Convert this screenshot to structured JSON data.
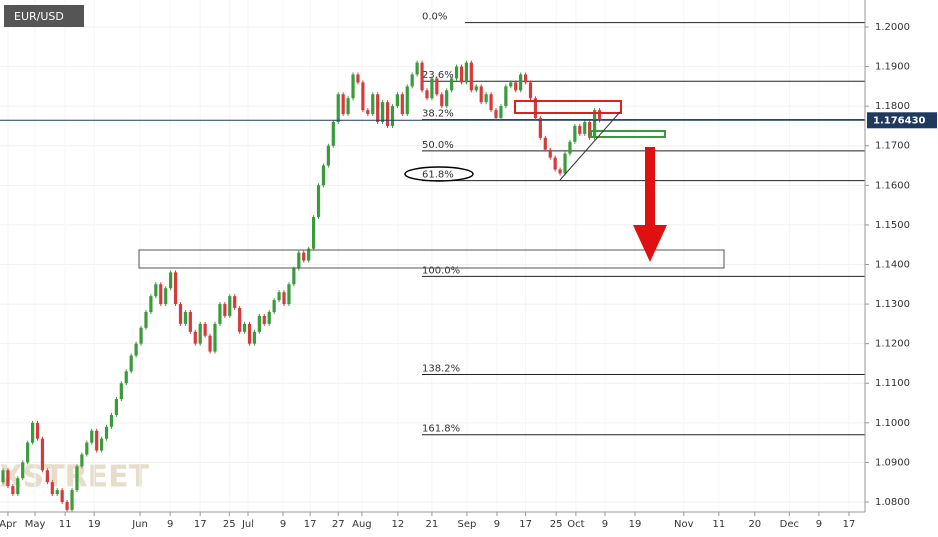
{
  "chart_data": {
    "type": "candlestick",
    "title": "EUR/USD",
    "watermark": "FXSTREET",
    "open": [
      1.085,
      1.088,
      1.084,
      1.082,
      1.086,
      1.09,
      1.095,
      1.1,
      1.096,
      1.088,
      1.085,
      1.082,
      1.083,
      1.08,
      1.078,
      1.083,
      1.089,
      1.092,
      1.095,
      1.098,
      1.093,
      1.096,
      1.099,
      1.102,
      1.106,
      1.11,
      1.113,
      1.117,
      1.12,
      1.124,
      1.128,
      1.132,
      1.135,
      1.13,
      1.134,
      1.138,
      1.13,
      1.125,
      1.128,
      1.123,
      1.12,
      1.125,
      1.122,
      1.118,
      1.125,
      1.13,
      1.127,
      1.132,
      1.129,
      1.123,
      1.125,
      1.12,
      1.123,
      1.127,
      1.125,
      1.128,
      1.131,
      1.133,
      1.13,
      1.135,
      1.139,
      1.143,
      1.141,
      1.144,
      1.152,
      1.16,
      1.165,
      1.17,
      1.176,
      1.183,
      1.178,
      1.182,
      1.188,
      1.186,
      1.179,
      1.178,
      1.183,
      1.176,
      1.181,
      1.175,
      1.18,
      1.183,
      1.178,
      1.185,
      1.188,
      1.191,
      1.184,
      1.182,
      1.187,
      1.183,
      1.18,
      1.184,
      1.187,
      1.19,
      1.186,
      1.191,
      1.184,
      1.185,
      1.181,
      1.183,
      1.179,
      1.177,
      1.18,
      1.185,
      1.186,
      1.184,
      1.188,
      1.186,
      1.182,
      1.177,
      1.172,
      1.169,
      1.167,
      1.164,
      1.163,
      1.168,
      1.171,
      1.175,
      1.173,
      1.176,
      1.172,
      1.179
    ],
    "close": [
      1.088,
      1.084,
      1.082,
      1.086,
      1.09,
      1.095,
      1.1,
      1.096,
      1.088,
      1.085,
      1.082,
      1.083,
      1.08,
      1.078,
      1.083,
      1.089,
      1.092,
      1.095,
      1.098,
      1.093,
      1.096,
      1.099,
      1.102,
      1.106,
      1.11,
      1.113,
      1.117,
      1.12,
      1.124,
      1.128,
      1.132,
      1.135,
      1.13,
      1.134,
      1.138,
      1.13,
      1.125,
      1.128,
      1.123,
      1.12,
      1.125,
      1.122,
      1.118,
      1.125,
      1.13,
      1.127,
      1.132,
      1.129,
      1.123,
      1.125,
      1.12,
      1.123,
      1.127,
      1.125,
      1.128,
      1.131,
      1.133,
      1.13,
      1.135,
      1.139,
      1.143,
      1.141,
      1.144,
      1.152,
      1.16,
      1.165,
      1.17,
      1.176,
      1.183,
      1.178,
      1.182,
      1.188,
      1.186,
      1.179,
      1.178,
      1.183,
      1.176,
      1.181,
      1.175,
      1.18,
      1.183,
      1.178,
      1.185,
      1.188,
      1.191,
      1.184,
      1.182,
      1.187,
      1.183,
      1.18,
      1.184,
      1.187,
      1.19,
      1.186,
      1.191,
      1.184,
      1.185,
      1.181,
      1.183,
      1.179,
      1.177,
      1.18,
      1.185,
      1.186,
      1.184,
      1.188,
      1.186,
      1.182,
      1.177,
      1.172,
      1.169,
      1.167,
      1.164,
      1.163,
      1.168,
      1.171,
      1.175,
      1.173,
      1.176,
      1.172,
      1.179,
      1.1764
    ],
    "up_color": "#3a9b3a",
    "down_color": "#d63b3b",
    "ylim": [
      1.07747,
      1.20682
    ],
    "yticks": [
      {
        "value": 1.08,
        "label": "1.0800"
      },
      {
        "value": 1.09,
        "label": "1.0900"
      },
      {
        "value": 1.1,
        "label": "1.1000"
      },
      {
        "value": 1.11,
        "label": "1.1100"
      },
      {
        "value": 1.12,
        "label": "1.1200"
      },
      {
        "value": 1.13,
        "label": "1.1300"
      },
      {
        "value": 1.14,
        "label": "1.1400"
      },
      {
        "value": 1.15,
        "label": "1.1500"
      },
      {
        "value": 1.16,
        "label": "1.1600"
      },
      {
        "value": 1.17,
        "label": "1.1700"
      },
      {
        "value": 1.18,
        "label": "1.1800"
      },
      {
        "value": 1.19,
        "label": "1.1900"
      },
      {
        "value": 1.2,
        "label": "1.2000"
      }
    ],
    "xlim": [
      -0.61,
      174.85
    ],
    "xticks": [
      {
        "value": 1,
        "label": "Apr"
      },
      {
        "value": 6.5,
        "label": "May"
      },
      {
        "value": 12.6,
        "label": "11"
      },
      {
        "value": 18.5,
        "label": "19"
      },
      {
        "value": 27.8,
        "label": "Jun"
      },
      {
        "value": 33.9,
        "label": "9"
      },
      {
        "value": 40,
        "label": "17"
      },
      {
        "value": 45.9,
        "label": "25"
      },
      {
        "value": 49.7,
        "label": "Jul"
      },
      {
        "value": 56.8,
        "label": "9"
      },
      {
        "value": 62.3,
        "label": "17"
      },
      {
        "value": 68,
        "label": "27"
      },
      {
        "value": 72.8,
        "label": "Aug"
      },
      {
        "value": 80.1,
        "label": "12"
      },
      {
        "value": 87,
        "label": "21"
      },
      {
        "value": 94.1,
        "label": "Sep"
      },
      {
        "value": 100.2,
        "label": "9"
      },
      {
        "value": 106,
        "label": "17"
      },
      {
        "value": 112.2,
        "label": "25"
      },
      {
        "value": 116.2,
        "label": "Oct"
      },
      {
        "value": 122.1,
        "label": "9"
      },
      {
        "value": 128.2,
        "label": "19"
      },
      {
        "value": 138.1,
        "label": "Nov"
      },
      {
        "value": 145.2,
        "label": "11"
      },
      {
        "value": 152.5,
        "label": "20"
      },
      {
        "value": 159.5,
        "label": "Dec"
      },
      {
        "value": 165.5,
        "label": "9"
      },
      {
        "value": 171.6,
        "label": "17"
      }
    ],
    "fib_levels": [
      {
        "value": 1.2011,
        "label": "0.0%"
      },
      {
        "value": 1.1863,
        "label": "23.6%"
      },
      {
        "value": 1.1766,
        "label": "38.2%"
      },
      {
        "value": 1.1687,
        "label": "50.0%"
      },
      {
        "value": 1.1612,
        "label": "61.8%"
      },
      {
        "value": 1.137,
        "label": "100.0%"
      },
      {
        "value": 1.1122,
        "label": "138.2%"
      },
      {
        "value": 1.097,
        "label": "161.8%"
      }
    ],
    "last_price": {
      "value": 1.17643,
      "label": "1.176430"
    },
    "grid": true
  }
}
